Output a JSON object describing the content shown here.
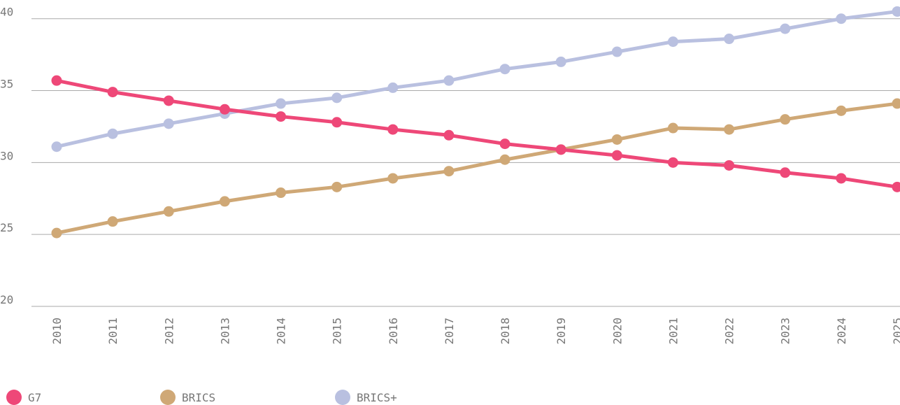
{
  "chart_data": {
    "type": "line",
    "categories": [
      "2010",
      "2011",
      "2012",
      "2013",
      "2014",
      "2015",
      "2016",
      "2017",
      "2018",
      "2019",
      "2020",
      "2021",
      "2022",
      "2023",
      "2024",
      "2025"
    ],
    "series": [
      {
        "name": "BRICS",
        "color": "#cfa876",
        "values": [
          25.1,
          25.9,
          26.6,
          27.3,
          27.9,
          28.3,
          28.9,
          29.4,
          30.2,
          30.9,
          31.6,
          32.4,
          32.3,
          33.0,
          33.6,
          34.1
        ]
      },
      {
        "name": "BRICS+",
        "color": "#b9c0e0",
        "values": [
          31.1,
          32.0,
          32.7,
          33.4,
          34.1,
          34.5,
          35.2,
          35.7,
          36.5,
          37.0,
          37.7,
          38.4,
          38.6,
          39.3,
          40.0,
          40.5
        ]
      },
      {
        "name": "G7",
        "color": "#ee4878",
        "values": [
          35.7,
          34.9,
          34.3,
          33.7,
          33.2,
          32.8,
          32.3,
          31.9,
          31.3,
          30.9,
          30.5,
          30.0,
          29.8,
          29.3,
          28.9,
          28.3
        ]
      }
    ],
    "legend_order": [
      2,
      0,
      1
    ],
    "ylim": [
      20,
      41.3
    ],
    "yticks": [
      20,
      25,
      30,
      35,
      40
    ],
    "grid": true
  }
}
